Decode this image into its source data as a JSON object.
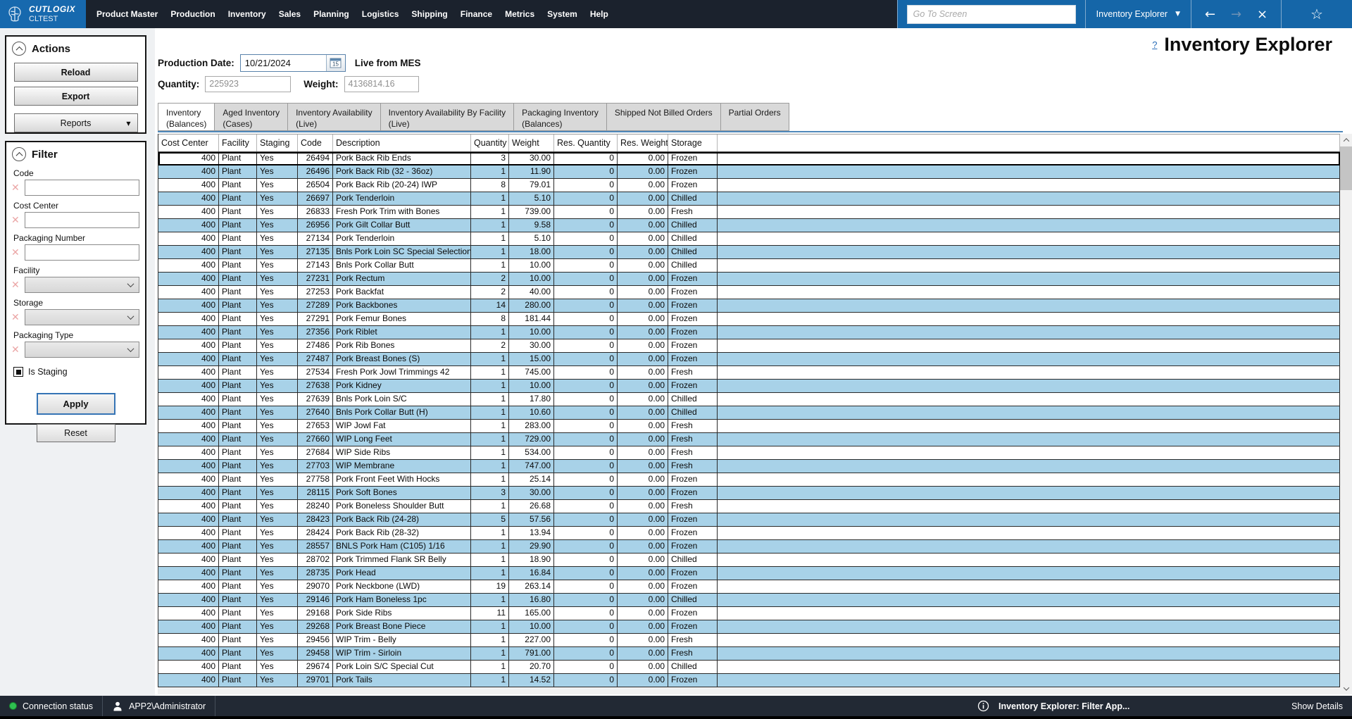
{
  "colors": {
    "accent_blue": "#1566a8",
    "topbar_dark": "#1b222d",
    "row_alt_blue": "#a8d2e8",
    "tab_line_blue": "#4f88ba",
    "status_green": "#2fc050"
  },
  "icons": {
    "back_arrow": "←",
    "forward_arrow": "→",
    "close": "×",
    "favorite_star": "☆",
    "dropdown_caret": "▼",
    "clear_x": "✕"
  },
  "topbar": {
    "logo_title": "CUTLOGIX",
    "logo_subtitle": "CLTEST",
    "menu": [
      "Product Master",
      "Production",
      "Inventory",
      "Sales",
      "Planning",
      "Logistics",
      "Shipping",
      "Finance",
      "Metrics",
      "System",
      "Help"
    ],
    "goto_placeholder": "Go To Screen",
    "screen_selector": "Inventory Explorer"
  },
  "actions_panel": {
    "title": "Actions",
    "reload_label": "Reload",
    "export_label": "Export",
    "reports_label": "Reports"
  },
  "filter_panel": {
    "title": "Filter",
    "fields": [
      {
        "label": "Code",
        "type": "text",
        "value": ""
      },
      {
        "label": "Cost Center",
        "type": "text",
        "value": ""
      },
      {
        "label": "Packaging Number",
        "type": "text",
        "value": ""
      },
      {
        "label": "Facility",
        "type": "select",
        "value": ""
      },
      {
        "label": "Storage",
        "type": "select",
        "value": ""
      },
      {
        "label": "Packaging Type",
        "type": "select",
        "value": ""
      }
    ],
    "checkbox": {
      "label": "Is Staging",
      "checked": true
    },
    "apply_label": "Apply",
    "reset_label": "Reset"
  },
  "toolbar": {
    "production_date_label": "Production Date:",
    "production_date_value": "10/21/2024",
    "live_label": "Live from MES",
    "quantity_label": "Quantity:",
    "quantity_value": "225923",
    "weight_label": "Weight:",
    "weight_value": "4136814.16"
  },
  "page": {
    "help_link": "?",
    "title": "Inventory Explorer"
  },
  "tabs": [
    {
      "line1": "Inventory",
      "line2": "(Balances)",
      "active": true
    },
    {
      "line1": "Aged Inventory",
      "line2": "(Cases)",
      "active": false
    },
    {
      "line1": "Inventory Availability",
      "line2": "(Live)",
      "active": false
    },
    {
      "line1": "Inventory Availability By Facility",
      "line2": "(Live)",
      "active": false
    },
    {
      "line1": "Packaging Inventory",
      "line2": "(Balances)",
      "active": false
    },
    {
      "line1": "Shipped Not Billed Orders",
      "line2": "",
      "active": false
    },
    {
      "line1": "Partial Orders",
      "line2": "",
      "active": false
    }
  ],
  "table": {
    "columns": [
      "Cost Center",
      "Facility",
      "Staging",
      "Code",
      "Description",
      "Quantity",
      "Weight",
      "Res. Quantity",
      "Res. Weight",
      "Storage"
    ],
    "selected_row_index": 0,
    "rows": [
      [
        "400",
        "Plant",
        "Yes",
        "26494",
        "Pork Back Rib Ends",
        "3",
        "30.00",
        "0",
        "0.00",
        "Frozen"
      ],
      [
        "400",
        "Plant",
        "Yes",
        "26496",
        "Pork Back Rib (32 - 36oz)",
        "1",
        "11.90",
        "0",
        "0.00",
        "Frozen"
      ],
      [
        "400",
        "Plant",
        "Yes",
        "26504",
        "Pork Back Rib (20-24) IWP",
        "8",
        "79.01",
        "0",
        "0.00",
        "Frozen"
      ],
      [
        "400",
        "Plant",
        "Yes",
        "26697",
        "Pork Tenderloin",
        "1",
        "5.10",
        "0",
        "0.00",
        "Chilled"
      ],
      [
        "400",
        "Plant",
        "Yes",
        "26833",
        "Fresh Pork Trim with Bones",
        "1",
        "739.00",
        "0",
        "0.00",
        "Fresh"
      ],
      [
        "400",
        "Plant",
        "Yes",
        "26956",
        "Pork Gilt Collar Butt",
        "1",
        "9.58",
        "0",
        "0.00",
        "Chilled"
      ],
      [
        "400",
        "Plant",
        "Yes",
        "27134",
        "Pork Tenderloin",
        "1",
        "5.10",
        "0",
        "0.00",
        "Chilled"
      ],
      [
        "400",
        "Plant",
        "Yes",
        "27135",
        "Bnls Pork Loin SC Special Selection",
        "1",
        "18.00",
        "0",
        "0.00",
        "Chilled"
      ],
      [
        "400",
        "Plant",
        "Yes",
        "27143",
        "Bnls Pork Collar Butt",
        "1",
        "10.00",
        "0",
        "0.00",
        "Chilled"
      ],
      [
        "400",
        "Plant",
        "Yes",
        "27231",
        "Pork Rectum",
        "2",
        "10.00",
        "0",
        "0.00",
        "Frozen"
      ],
      [
        "400",
        "Plant",
        "Yes",
        "27253",
        "Pork Backfat",
        "2",
        "40.00",
        "0",
        "0.00",
        "Frozen"
      ],
      [
        "400",
        "Plant",
        "Yes",
        "27289",
        "Pork Backbones",
        "14",
        "280.00",
        "0",
        "0.00",
        "Frozen"
      ],
      [
        "400",
        "Plant",
        "Yes",
        "27291",
        "Pork Femur Bones",
        "8",
        "181.44",
        "0",
        "0.00",
        "Frozen"
      ],
      [
        "400",
        "Plant",
        "Yes",
        "27356",
        "Pork Riblet",
        "1",
        "10.00",
        "0",
        "0.00",
        "Frozen"
      ],
      [
        "400",
        "Plant",
        "Yes",
        "27486",
        "Pork Rib Bones",
        "2",
        "30.00",
        "0",
        "0.00",
        "Frozen"
      ],
      [
        "400",
        "Plant",
        "Yes",
        "27487",
        "Pork Breast Bones (S)",
        "1",
        "15.00",
        "0",
        "0.00",
        "Frozen"
      ],
      [
        "400",
        "Plant",
        "Yes",
        "27534",
        "Fresh Pork Jowl Trimmings 42",
        "1",
        "745.00",
        "0",
        "0.00",
        "Fresh"
      ],
      [
        "400",
        "Plant",
        "Yes",
        "27638",
        "Pork Kidney",
        "1",
        "10.00",
        "0",
        "0.00",
        "Frozen"
      ],
      [
        "400",
        "Plant",
        "Yes",
        "27639",
        "Bnls Pork Loin S/C",
        "1",
        "17.80",
        "0",
        "0.00",
        "Chilled"
      ],
      [
        "400",
        "Plant",
        "Yes",
        "27640",
        "Bnls Pork Collar Butt (H)",
        "1",
        "10.60",
        "0",
        "0.00",
        "Chilled"
      ],
      [
        "400",
        "Plant",
        "Yes",
        "27653",
        "WIP Jowl Fat",
        "1",
        "283.00",
        "0",
        "0.00",
        "Fresh"
      ],
      [
        "400",
        "Plant",
        "Yes",
        "27660",
        "WIP Long Feet",
        "1",
        "729.00",
        "0",
        "0.00",
        "Fresh"
      ],
      [
        "400",
        "Plant",
        "Yes",
        "27684",
        "WIP Side Ribs",
        "1",
        "534.00",
        "0",
        "0.00",
        "Fresh"
      ],
      [
        "400",
        "Plant",
        "Yes",
        "27703",
        "WIP Membrane",
        "1",
        "747.00",
        "0",
        "0.00",
        "Fresh"
      ],
      [
        "400",
        "Plant",
        "Yes",
        "27758",
        "Pork Front Feet With Hocks",
        "1",
        "25.14",
        "0",
        "0.00",
        "Frozen"
      ],
      [
        "400",
        "Plant",
        "Yes",
        "28115",
        "Pork Soft Bones",
        "3",
        "30.00",
        "0",
        "0.00",
        "Frozen"
      ],
      [
        "400",
        "Plant",
        "Yes",
        "28240",
        "Pork Boneless Shoulder Butt",
        "1",
        "26.68",
        "0",
        "0.00",
        "Fresh"
      ],
      [
        "400",
        "Plant",
        "Yes",
        "28423",
        "Pork Back Rib (24-28)",
        "5",
        "57.56",
        "0",
        "0.00",
        "Frozen"
      ],
      [
        "400",
        "Plant",
        "Yes",
        "28424",
        "Pork Back Rib (28-32)",
        "1",
        "13.94",
        "0",
        "0.00",
        "Frozen"
      ],
      [
        "400",
        "Plant",
        "Yes",
        "28557",
        "BNLS Pork Ham (C105) 1/16",
        "1",
        "29.90",
        "0",
        "0.00",
        "Frozen"
      ],
      [
        "400",
        "Plant",
        "Yes",
        "28702",
        "Pork Trimmed Flank SR Belly",
        "1",
        "18.90",
        "0",
        "0.00",
        "Chilled"
      ],
      [
        "400",
        "Plant",
        "Yes",
        "28735",
        "Pork Head",
        "1",
        "16.84",
        "0",
        "0.00",
        "Frozen"
      ],
      [
        "400",
        "Plant",
        "Yes",
        "29070",
        "Pork Neckbone (LWD)",
        "19",
        "263.14",
        "0",
        "0.00",
        "Frozen"
      ],
      [
        "400",
        "Plant",
        "Yes",
        "29146",
        "Pork Ham Boneless 1pc",
        "1",
        "16.80",
        "0",
        "0.00",
        "Chilled"
      ],
      [
        "400",
        "Plant",
        "Yes",
        "29168",
        "Pork Side Ribs",
        "11",
        "165.00",
        "0",
        "0.00",
        "Frozen"
      ],
      [
        "400",
        "Plant",
        "Yes",
        "29268",
        "Pork Breast Bone Piece",
        "1",
        "10.00",
        "0",
        "0.00",
        "Frozen"
      ],
      [
        "400",
        "Plant",
        "Yes",
        "29456",
        "WIP Trim - Belly",
        "1",
        "227.00",
        "0",
        "0.00",
        "Fresh"
      ],
      [
        "400",
        "Plant",
        "Yes",
        "29458",
        "WIP Trim - Sirloin",
        "1",
        "791.00",
        "0",
        "0.00",
        "Fresh"
      ],
      [
        "400",
        "Plant",
        "Yes",
        "29674",
        "Pork Loin S/C Special Cut",
        "1",
        "20.70",
        "0",
        "0.00",
        "Chilled"
      ],
      [
        "400",
        "Plant",
        "Yes",
        "29701",
        "Pork Tails",
        "1",
        "14.52",
        "0",
        "0.00",
        "Frozen"
      ]
    ]
  },
  "statusbar": {
    "connection": "Connection status",
    "user": "APP2\\Administrator",
    "message": "Inventory Explorer: Filter App...",
    "show_details": "Show Details"
  }
}
